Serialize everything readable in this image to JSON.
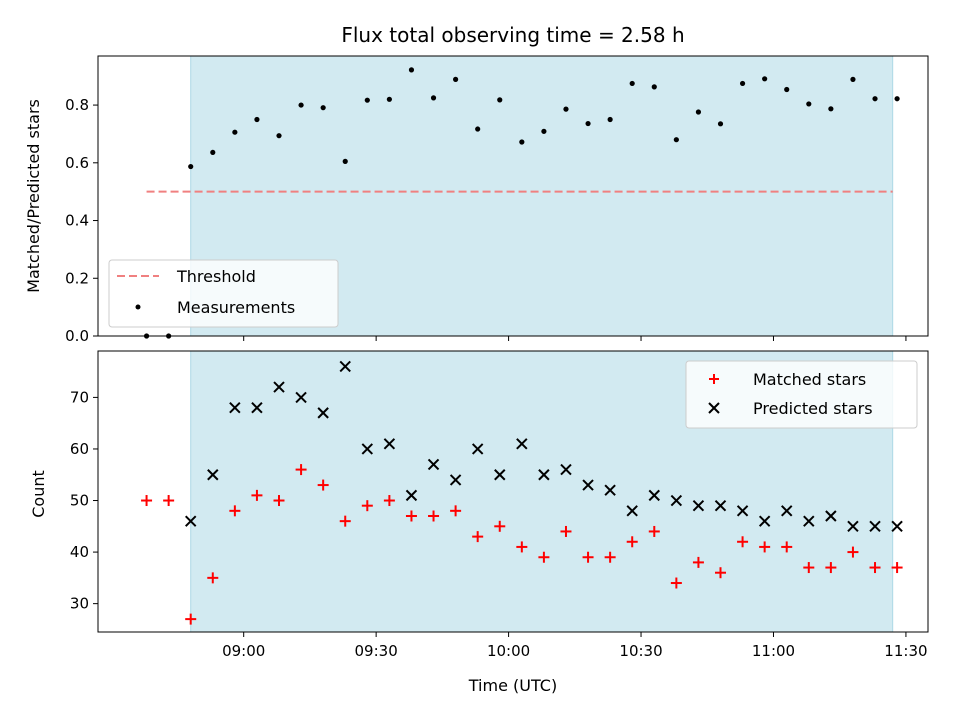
{
  "chart_data": [
    {
      "type": "scatter",
      "title": "Flux total observing time = 2.58 h",
      "xlabel": "",
      "ylabel": "Matched/Predicted stars",
      "ylim": [
        0,
        0.97
      ],
      "yticks": [
        "0.0",
        "0.2",
        "0.4",
        "0.6",
        "0.8"
      ],
      "legend": {
        "placement": "lower-left",
        "entries": [
          "Threshold",
          "Measurements"
        ]
      },
      "shaded_span": [
        "08:48",
        "11:27"
      ],
      "colors": {
        "shade": "#add8e6",
        "threshold": "#f08080",
        "points": "#000000"
      },
      "series": [
        {
          "name": "Measurements",
          "x": [
            "08:38",
            "08:43",
            "08:48",
            "08:53",
            "08:58",
            "09:03",
            "09:08",
            "09:13",
            "09:18",
            "09:23",
            "09:28",
            "09:33",
            "09:38",
            "09:43",
            "09:48",
            "09:53",
            "09:58",
            "10:03",
            "10:08",
            "10:13",
            "10:18",
            "10:23",
            "10:28",
            "10:33",
            "10:38",
            "10:43",
            "10:48",
            "10:53",
            "10:58",
            "11:03",
            "11:08",
            "11:13",
            "11:18",
            "11:23",
            "11:28"
          ],
          "y": [
            0.0,
            0.0,
            0.587,
            0.636,
            0.706,
            0.75,
            0.694,
            0.8,
            0.791,
            0.605,
            0.817,
            0.82,
            0.922,
            0.825,
            0.889,
            0.717,
            0.818,
            0.672,
            0.709,
            0.786,
            0.736,
            0.75,
            0.875,
            0.863,
            0.68,
            0.776,
            0.735,
            0.875,
            0.891,
            0.854,
            0.804,
            0.787,
            0.889,
            0.822,
            0.822
          ]
        },
        {
          "name": "Threshold",
          "x": [
            "08:38",
            "11:27"
          ],
          "y": [
            0.5,
            0.5
          ]
        }
      ]
    },
    {
      "type": "scatter",
      "title": "",
      "xlabel": "Time (UTC)",
      "ylabel": "Count",
      "ylim": [
        24.5,
        79
      ],
      "yticks": [
        "30",
        "40",
        "50",
        "60",
        "70"
      ],
      "xticks": [
        "09:00",
        "09:30",
        "10:00",
        "10:30",
        "11:00",
        "11:30"
      ],
      "legend": {
        "placement": "upper-right",
        "entries": [
          "Matched stars",
          "Predicted stars"
        ]
      },
      "shaded_span": [
        "08:48",
        "11:27"
      ],
      "colors": {
        "shade": "#add8e6",
        "matched": "#ff0000",
        "predicted": "#000000"
      },
      "series": [
        {
          "name": "Matched stars",
          "x": [
            "08:38",
            "08:43",
            "08:48",
            "08:53",
            "08:58",
            "09:03",
            "09:08",
            "09:13",
            "09:18",
            "09:23",
            "09:28",
            "09:33",
            "09:38",
            "09:43",
            "09:48",
            "09:53",
            "09:58",
            "10:03",
            "10:08",
            "10:13",
            "10:18",
            "10:23",
            "10:28",
            "10:33",
            "10:38",
            "10:43",
            "10:48",
            "10:53",
            "10:58",
            "11:03",
            "11:08",
            "11:13",
            "11:18",
            "11:23",
            "11:28"
          ],
          "y": [
            50,
            50,
            27,
            35,
            48,
            51,
            50,
            56,
            53,
            46,
            49,
            50,
            47,
            47,
            48,
            43,
            45,
            41,
            39,
            44,
            39,
            39,
            42,
            44,
            34,
            38,
            36,
            42,
            41,
            41,
            37,
            37,
            40,
            37,
            37
          ]
        },
        {
          "name": "Predicted stars",
          "x": [
            "08:48",
            "08:53",
            "08:58",
            "09:03",
            "09:08",
            "09:13",
            "09:18",
            "09:23",
            "09:28",
            "09:33",
            "09:38",
            "09:43",
            "09:48",
            "09:53",
            "09:58",
            "10:03",
            "10:08",
            "10:13",
            "10:18",
            "10:23",
            "10:28",
            "10:33",
            "10:38",
            "10:43",
            "10:48",
            "10:53",
            "10:58",
            "11:03",
            "11:08",
            "11:13",
            "11:18",
            "11:23",
            "11:28"
          ],
          "y": [
            46,
            55,
            68,
            68,
            72,
            70,
            67,
            76,
            60,
            61,
            51,
            57,
            54,
            60,
            55,
            61,
            55,
            56,
            53,
            52,
            48,
            51,
            50,
            49,
            49,
            48,
            46,
            48,
            46,
            47,
            45,
            45,
            45
          ]
        }
      ]
    }
  ]
}
